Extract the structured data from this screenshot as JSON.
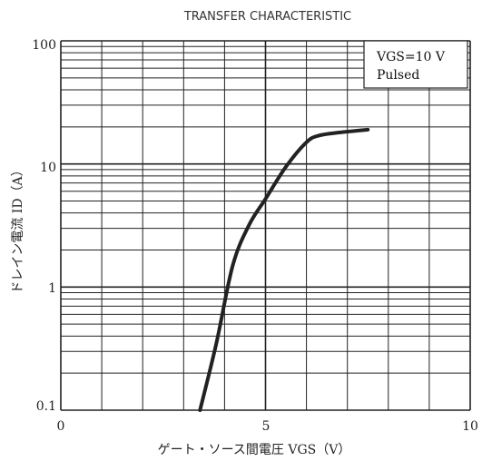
{
  "chart_data": {
    "type": "line",
    "title": "TRANSFER CHARACTERISTIC",
    "xlabel": "ゲート・ソース間電圧  VGS（V）",
    "ylabel": "ドレイン電流  ID（A）",
    "xscale": "linear",
    "yscale": "log",
    "xlim": [
      0,
      10
    ],
    "ylim": [
      0.1,
      100
    ],
    "x_ticks": [
      "0",
      "5",
      "10"
    ],
    "y_ticks": [
      "0.1",
      "1",
      "10",
      "100"
    ],
    "grid": true,
    "legend": {
      "position": "top-right",
      "line1": "VGS=10 V",
      "line2": "Pulsed"
    },
    "series": [
      {
        "x": [
          3.4,
          3.8,
          4.2,
          4.6,
          5.0,
          5.5,
          6.0,
          6.3,
          6.8,
          7.5
        ],
        "y": [
          0.1,
          0.35,
          1.5,
          3.2,
          5.2,
          9.5,
          15.0,
          17.0,
          18.0,
          19.0
        ]
      }
    ]
  }
}
